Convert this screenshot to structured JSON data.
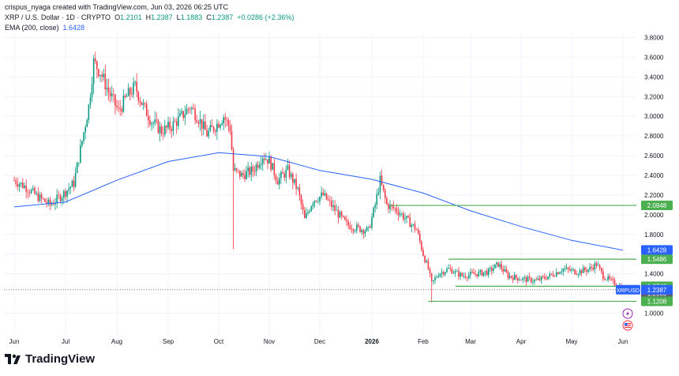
{
  "header": {
    "author": "crispus_nyaga created with TradingView.com, Jun 03, 2026 06:25 UTC",
    "symbol": "XRP / U.S. Dollar · 1D · CRYPTO",
    "open_label": "O",
    "open": "1.2101",
    "high_label": "H",
    "high": "1.2387",
    "low_label": "L",
    "low": "1.1883",
    "close_label": "C",
    "close": "1.2387",
    "change": "+0.0286 (+2.36%)",
    "ema_label": "EMA (200, close)",
    "ema_value": "1.6428"
  },
  "branding": {
    "logo_text": "TradingView",
    "logo_icon": "tradingview-logo-icon"
  },
  "icons": [
    "lightning-icon",
    "us-flag-icon"
  ],
  "colors": {
    "up": "#089981",
    "down": "#f23645",
    "ema": "#2962ff",
    "level": "#4caf50",
    "price_tag": "#2962ff"
  },
  "chart_data": {
    "type": "candlestick",
    "title": "XRP / U.S. Dollar · 1D · CRYPTO",
    "x_tick_labels": [
      "Jun",
      "Jul",
      "Aug",
      "Sep",
      "Oct",
      "Nov",
      "Dec",
      "2026",
      "Feb",
      "Mar",
      "Apr",
      "May",
      "Jun"
    ],
    "x_tick_dates": [
      "2025-06-01",
      "2025-07-01",
      "2025-08-01",
      "2025-09-01",
      "2025-10-01",
      "2025-11-01",
      "2025-12-01",
      "2026-01-01",
      "2026-02-01",
      "2026-03-01",
      "2026-04-01",
      "2026-05-01",
      "2026-06-01"
    ],
    "y_tick_labels": [
      "3.8000",
      "3.6000",
      "3.4000",
      "3.2000",
      "3.0000",
      "2.8000",
      "2.6000",
      "2.4000",
      "2.2000",
      "2.0000",
      "1.8000",
      "1.6000",
      "1.4000",
      "1.2000",
      "1.0000"
    ],
    "ylim": [
      0.94,
      3.86
    ],
    "price_path": [
      [
        "2025-06-01",
        2.35
      ],
      [
        "2025-06-08",
        2.28
      ],
      [
        "2025-06-15",
        2.18
      ],
      [
        "2025-06-22",
        2.1
      ],
      [
        "2025-06-29",
        2.2
      ],
      [
        "2025-07-06",
        2.32
      ],
      [
        "2025-07-11",
        2.75
      ],
      [
        "2025-07-15",
        3.1
      ],
      [
        "2025-07-18",
        3.55
      ],
      [
        "2025-07-22",
        3.45
      ],
      [
        "2025-07-27",
        3.25
      ],
      [
        "2025-08-02",
        3.05
      ],
      [
        "2025-08-07",
        3.2
      ],
      [
        "2025-08-12",
        3.3
      ],
      [
        "2025-08-17",
        3.1
      ],
      [
        "2025-08-22",
        2.95
      ],
      [
        "2025-08-28",
        2.85
      ],
      [
        "2025-09-03",
        2.9
      ],
      [
        "2025-09-09",
        3.0
      ],
      [
        "2025-09-14",
        3.1
      ],
      [
        "2025-09-19",
        2.98
      ],
      [
        "2025-09-24",
        2.82
      ],
      [
        "2025-09-29",
        2.9
      ],
      [
        "2025-10-04",
        3.0
      ],
      [
        "2025-10-08",
        2.88
      ],
      [
        "2025-10-10",
        2.45
      ],
      [
        "2025-10-15",
        2.4
      ],
      [
        "2025-10-22",
        2.45
      ],
      [
        "2025-10-28",
        2.6
      ],
      [
        "2025-11-01",
        2.55
      ],
      [
        "2025-11-06",
        2.35
      ],
      [
        "2025-11-12",
        2.45
      ],
      [
        "2025-11-18",
        2.25
      ],
      [
        "2025-11-22",
        1.95
      ],
      [
        "2025-11-27",
        2.15
      ],
      [
        "2025-12-03",
        2.2
      ],
      [
        "2025-12-10",
        2.05
      ],
      [
        "2025-12-17",
        1.9
      ],
      [
        "2025-12-24",
        1.86
      ],
      [
        "2025-12-30",
        1.84
      ],
      [
        "2026-01-03",
        2.1
      ],
      [
        "2026-01-06",
        2.35
      ],
      [
        "2026-01-10",
        2.1
      ],
      [
        "2026-01-16",
        2.05
      ],
      [
        "2026-01-22",
        1.95
      ],
      [
        "2026-01-28",
        1.85
      ],
      [
        "2026-02-01",
        1.6
      ],
      [
        "2026-02-04",
        1.45
      ],
      [
        "2026-02-06",
        1.3
      ],
      [
        "2026-02-10",
        1.4
      ],
      [
        "2026-02-16",
        1.45
      ],
      [
        "2026-02-24",
        1.38
      ],
      [
        "2026-03-04",
        1.4
      ],
      [
        "2026-03-12",
        1.42
      ],
      [
        "2026-03-18",
        1.5
      ],
      [
        "2026-03-24",
        1.38
      ],
      [
        "2026-04-01",
        1.35
      ],
      [
        "2026-04-10",
        1.33
      ],
      [
        "2026-04-18",
        1.38
      ],
      [
        "2026-04-26",
        1.45
      ],
      [
        "2026-05-04",
        1.42
      ],
      [
        "2026-05-12",
        1.45
      ],
      [
        "2026-05-16",
        1.5
      ],
      [
        "2026-05-20",
        1.38
      ],
      [
        "2026-05-27",
        1.3
      ],
      [
        "2026-06-02",
        1.2387
      ]
    ],
    "spike_lows": [
      [
        "2025-10-10",
        1.65
      ],
      [
        "2026-02-06",
        1.11
      ]
    ],
    "ema_series": [
      [
        "2025-06-01",
        2.08
      ],
      [
        "2025-07-01",
        2.13
      ],
      [
        "2025-08-01",
        2.35
      ],
      [
        "2025-09-01",
        2.54
      ],
      [
        "2025-10-01",
        2.63
      ],
      [
        "2025-11-01",
        2.59
      ],
      [
        "2025-12-01",
        2.45
      ],
      [
        "2026-01-01",
        2.36
      ],
      [
        "2026-02-01",
        2.22
      ],
      [
        "2026-03-01",
        2.04
      ],
      [
        "2026-04-01",
        1.88
      ],
      [
        "2026-05-01",
        1.74
      ],
      [
        "2026-06-01",
        1.64
      ]
    ],
    "horizontal_levels": [
      {
        "value": 2.0948,
        "label": "2.0948",
        "start": "2026-01-12"
      },
      {
        "value": 1.5486,
        "label": "1.5486",
        "start": "2026-02-16"
      },
      {
        "value": 1.274,
        "label": "1.2740",
        "start": "2026-02-20"
      },
      {
        "value": 1.1208,
        "label": "1.1208",
        "start": "2026-02-04"
      }
    ],
    "ema_last": {
      "value": 1.6428,
      "label": "1.6428"
    },
    "last_price": {
      "value": 1.2387,
      "label": "1.2387",
      "symbol": "XRPUSD"
    },
    "extra_tag": {
      "value": 1.2,
      "label": "1.2000"
    }
  }
}
